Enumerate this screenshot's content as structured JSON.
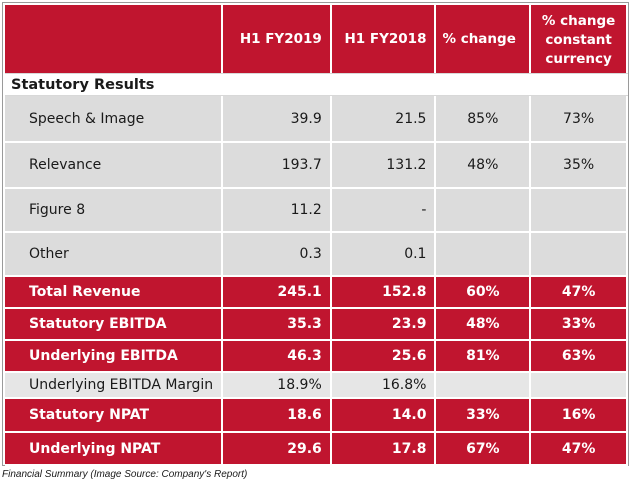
{
  "header": {
    "col1": "H1 FY2019",
    "col2": "H1 FY2018",
    "col3": "% change",
    "col4_line1": "% change",
    "col4_line2": "constant",
    "col4_line3": "currency"
  },
  "section_title": "Statutory Results",
  "rows": [
    {
      "label": "Speech & Image",
      "fy2019": "39.9",
      "fy2018": "21.5",
      "change": "85%",
      "cc": "73%"
    },
    {
      "label": "Relevance",
      "fy2019": "193.7",
      "fy2018": "131.2",
      "change": "48%",
      "cc": "35%"
    },
    {
      "label": "Figure 8",
      "fy2019": "11.2",
      "fy2018": "-",
      "change": "",
      "cc": ""
    },
    {
      "label": "Other",
      "fy2019": "0.3",
      "fy2018": "0.1",
      "change": "",
      "cc": ""
    },
    {
      "label": "Total Revenue",
      "fy2019": "245.1",
      "fy2018": "152.8",
      "change": "60%",
      "cc": "47%"
    },
    {
      "label": "Statutory EBITDA",
      "fy2019": "35.3",
      "fy2018": "23.9",
      "change": "48%",
      "cc": "33%"
    },
    {
      "label": "Underlying EBITDA",
      "fy2019": "46.3",
      "fy2018": "25.6",
      "change": "81%",
      "cc": "63%"
    },
    {
      "label": "Underlying EBITDA Margin",
      "fy2019": "18.9%",
      "fy2018": "16.8%",
      "change": "",
      "cc": ""
    },
    {
      "label": "Statutory NPAT",
      "fy2019": "18.6",
      "fy2018": "14.0",
      "change": "33%",
      "cc": "16%"
    },
    {
      "label": "Underlying NPAT",
      "fy2019": "29.6",
      "fy2018": "17.8",
      "change": "67%",
      "cc": "47%"
    }
  ],
  "caption": "Financial Summary (Image Source: Company's Report)",
  "colors": {
    "accent_red": "#c0152f",
    "row_grey": "#dcdcdc",
    "row_light_grey": "#e6e6e6"
  }
}
